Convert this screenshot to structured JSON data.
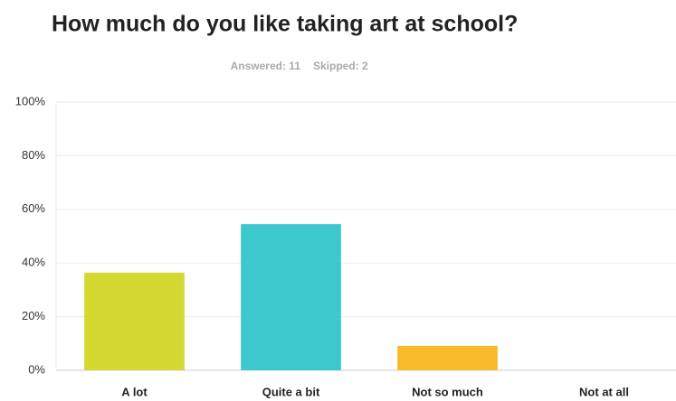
{
  "chart_data": {
    "type": "bar",
    "title": "How much do you like taking art at school?",
    "answered": "Answered: 11",
    "skipped": "Skipped: 2",
    "categories": [
      "A lot",
      "Quite a bit",
      "Not so much",
      "Not at all"
    ],
    "values": [
      36.4,
      54.5,
      9.1,
      0
    ],
    "colors": [
      "#d6d832",
      "#3cc8cc",
      "#f7bb2a",
      "#e8574a"
    ],
    "ylim": [
      0,
      100
    ],
    "yticks": [
      {
        "value": 0,
        "label": "0%"
      },
      {
        "value": 20,
        "label": "20%"
      },
      {
        "value": 40,
        "label": "40%"
      },
      {
        "value": 60,
        "label": "60%"
      },
      {
        "value": 80,
        "label": "80%"
      },
      {
        "value": 100,
        "label": "100%"
      }
    ],
    "grid": true
  }
}
